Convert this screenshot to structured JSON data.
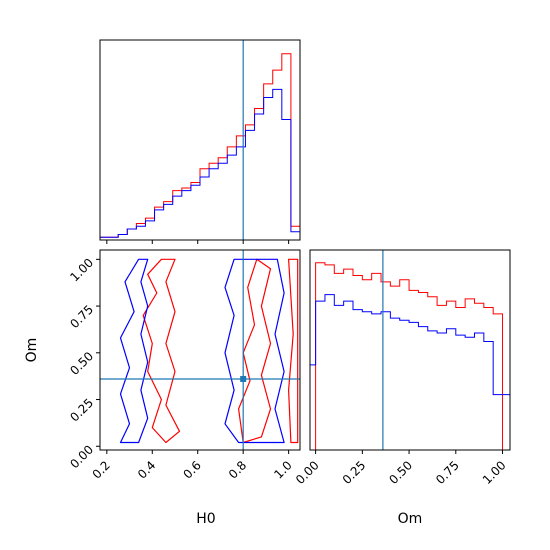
{
  "figure": {
    "xlabel_h0": "H0",
    "xlabel_om": "Om",
    "ylabel_om": "Om"
  },
  "colors": {
    "series_a": "#ff0000",
    "series_b": "#0000ff",
    "truth": "#1f77b4",
    "axes": "#000000"
  },
  "chart_data": [
    {
      "type": "histogram",
      "panel": "H0 marginal",
      "xlim": [
        0.17,
        1.05
      ],
      "bin_edges": [
        0.17,
        0.21,
        0.25,
        0.29,
        0.33,
        0.37,
        0.41,
        0.45,
        0.49,
        0.53,
        0.57,
        0.61,
        0.65,
        0.69,
        0.73,
        0.77,
        0.81,
        0.85,
        0.89,
        0.93,
        0.97,
        1.01,
        1.05
      ],
      "series": [
        {
          "color": "red",
          "values": [
            1,
            1,
            2,
            4,
            6,
            8,
            12,
            14,
            18,
            19,
            21,
            26,
            28,
            30,
            34,
            38,
            42,
            48,
            57,
            62,
            68,
            5
          ]
        },
        {
          "color": "blue",
          "values": [
            1,
            1,
            2,
            4,
            5,
            7,
            11,
            13,
            16,
            18,
            20,
            23,
            26,
            28,
            31,
            34,
            40,
            46,
            52,
            55,
            44,
            3
          ]
        }
      ],
      "truth_x": 0.8,
      "yticks_visible": false
    },
    {
      "type": "contour",
      "panel": "H0 vs Om",
      "xlabel": "H0",
      "ylabel": "Om",
      "xlim": [
        0.17,
        1.05
      ],
      "ylim": [
        -0.02,
        1.05
      ],
      "xticks": [
        "0.2",
        "0.4",
        "0.6",
        "0.8",
        "1.0"
      ],
      "yticks": [
        "0.00",
        "0.25",
        "0.50",
        "0.75",
        "1.00"
      ],
      "truth": [
        0.8,
        0.36
      ],
      "series": [
        {
          "color": "red",
          "contours": [
            [
              [
                0.44,
                1.0
              ],
              [
                0.38,
                0.92
              ],
              [
                0.42,
                0.82
              ],
              [
                0.36,
                0.7
              ],
              [
                0.4,
                0.55
              ],
              [
                0.38,
                0.4
              ],
              [
                0.44,
                0.25
              ],
              [
                0.4,
                0.1
              ],
              [
                0.46,
                0.02
              ],
              [
                0.52,
                0.08
              ],
              [
                0.46,
                0.22
              ],
              [
                0.5,
                0.4
              ],
              [
                0.46,
                0.55
              ],
              [
                0.5,
                0.72
              ],
              [
                0.46,
                0.88
              ],
              [
                0.5,
                1.0
              ]
            ],
            [
              [
                0.8,
                0.02
              ],
              [
                0.78,
                0.2
              ],
              [
                0.83,
                0.35
              ],
              [
                0.8,
                0.5
              ],
              [
                0.85,
                0.65
              ],
              [
                0.82,
                0.85
              ],
              [
                0.86,
                1.0
              ],
              [
                0.92,
                0.95
              ],
              [
                0.88,
                0.75
              ],
              [
                0.92,
                0.55
              ],
              [
                0.88,
                0.38
              ],
              [
                0.92,
                0.2
              ],
              [
                0.88,
                0.05
              ]
            ],
            [
              [
                1.01,
                0.02
              ],
              [
                1.0,
                0.3
              ],
              [
                1.02,
                0.6
              ],
              [
                1.0,
                1.0
              ],
              [
                1.04,
                1.0
              ],
              [
                1.04,
                0.02
              ]
            ]
          ]
        },
        {
          "color": "blue",
          "contours": [
            [
              [
                0.34,
                1.0
              ],
              [
                0.28,
                0.88
              ],
              [
                0.32,
                0.72
              ],
              [
                0.26,
                0.58
              ],
              [
                0.3,
                0.42
              ],
              [
                0.26,
                0.28
              ],
              [
                0.3,
                0.12
              ],
              [
                0.26,
                0.02
              ],
              [
                0.34,
                0.02
              ],
              [
                0.38,
                0.15
              ],
              [
                0.35,
                0.3
              ],
              [
                0.38,
                0.45
              ],
              [
                0.35,
                0.6
              ],
              [
                0.38,
                0.75
              ],
              [
                0.35,
                0.88
              ],
              [
                0.38,
                1.0
              ]
            ],
            [
              [
                0.76,
                1.0
              ],
              [
                0.72,
                0.85
              ],
              [
                0.76,
                0.7
              ],
              [
                0.72,
                0.5
              ],
              [
                0.76,
                0.3
              ],
              [
                0.72,
                0.12
              ],
              [
                0.78,
                0.02
              ],
              [
                0.98,
                0.02
              ],
              [
                0.94,
                0.2
              ],
              [
                0.98,
                0.4
              ],
              [
                0.94,
                0.6
              ],
              [
                0.98,
                0.82
              ],
              [
                0.95,
                1.0
              ]
            ]
          ]
        }
      ]
    },
    {
      "type": "histogram",
      "panel": "Om marginal",
      "xlabel": "Om",
      "xlim": [
        -0.03,
        1.04
      ],
      "xticks": [
        "0.00",
        "0.25",
        "0.50",
        "0.75",
        "1.00"
      ],
      "bin_edges": [
        -0.03,
        0.0,
        0.05,
        0.1,
        0.15,
        0.2,
        0.25,
        0.3,
        0.35,
        0.4,
        0.45,
        0.5,
        0.55,
        0.6,
        0.65,
        0.7,
        0.75,
        0.8,
        0.85,
        0.9,
        0.95,
        1.0,
        1.04
      ],
      "series": [
        {
          "color": "red",
          "values": [
            0,
            88,
            87,
            83,
            85,
            82,
            80,
            83,
            79,
            77,
            80,
            75,
            74,
            72,
            68,
            70,
            67,
            71,
            69,
            67,
            64,
            0
          ]
        },
        {
          "color": "blue",
          "values": [
            40,
            70,
            73,
            68,
            70,
            66,
            65,
            64,
            65,
            62,
            61,
            60,
            58,
            56,
            55,
            57,
            54,
            53,
            55,
            51,
            26,
            26
          ]
        }
      ],
      "truth_x": 0.36,
      "yticks_visible": false
    }
  ]
}
